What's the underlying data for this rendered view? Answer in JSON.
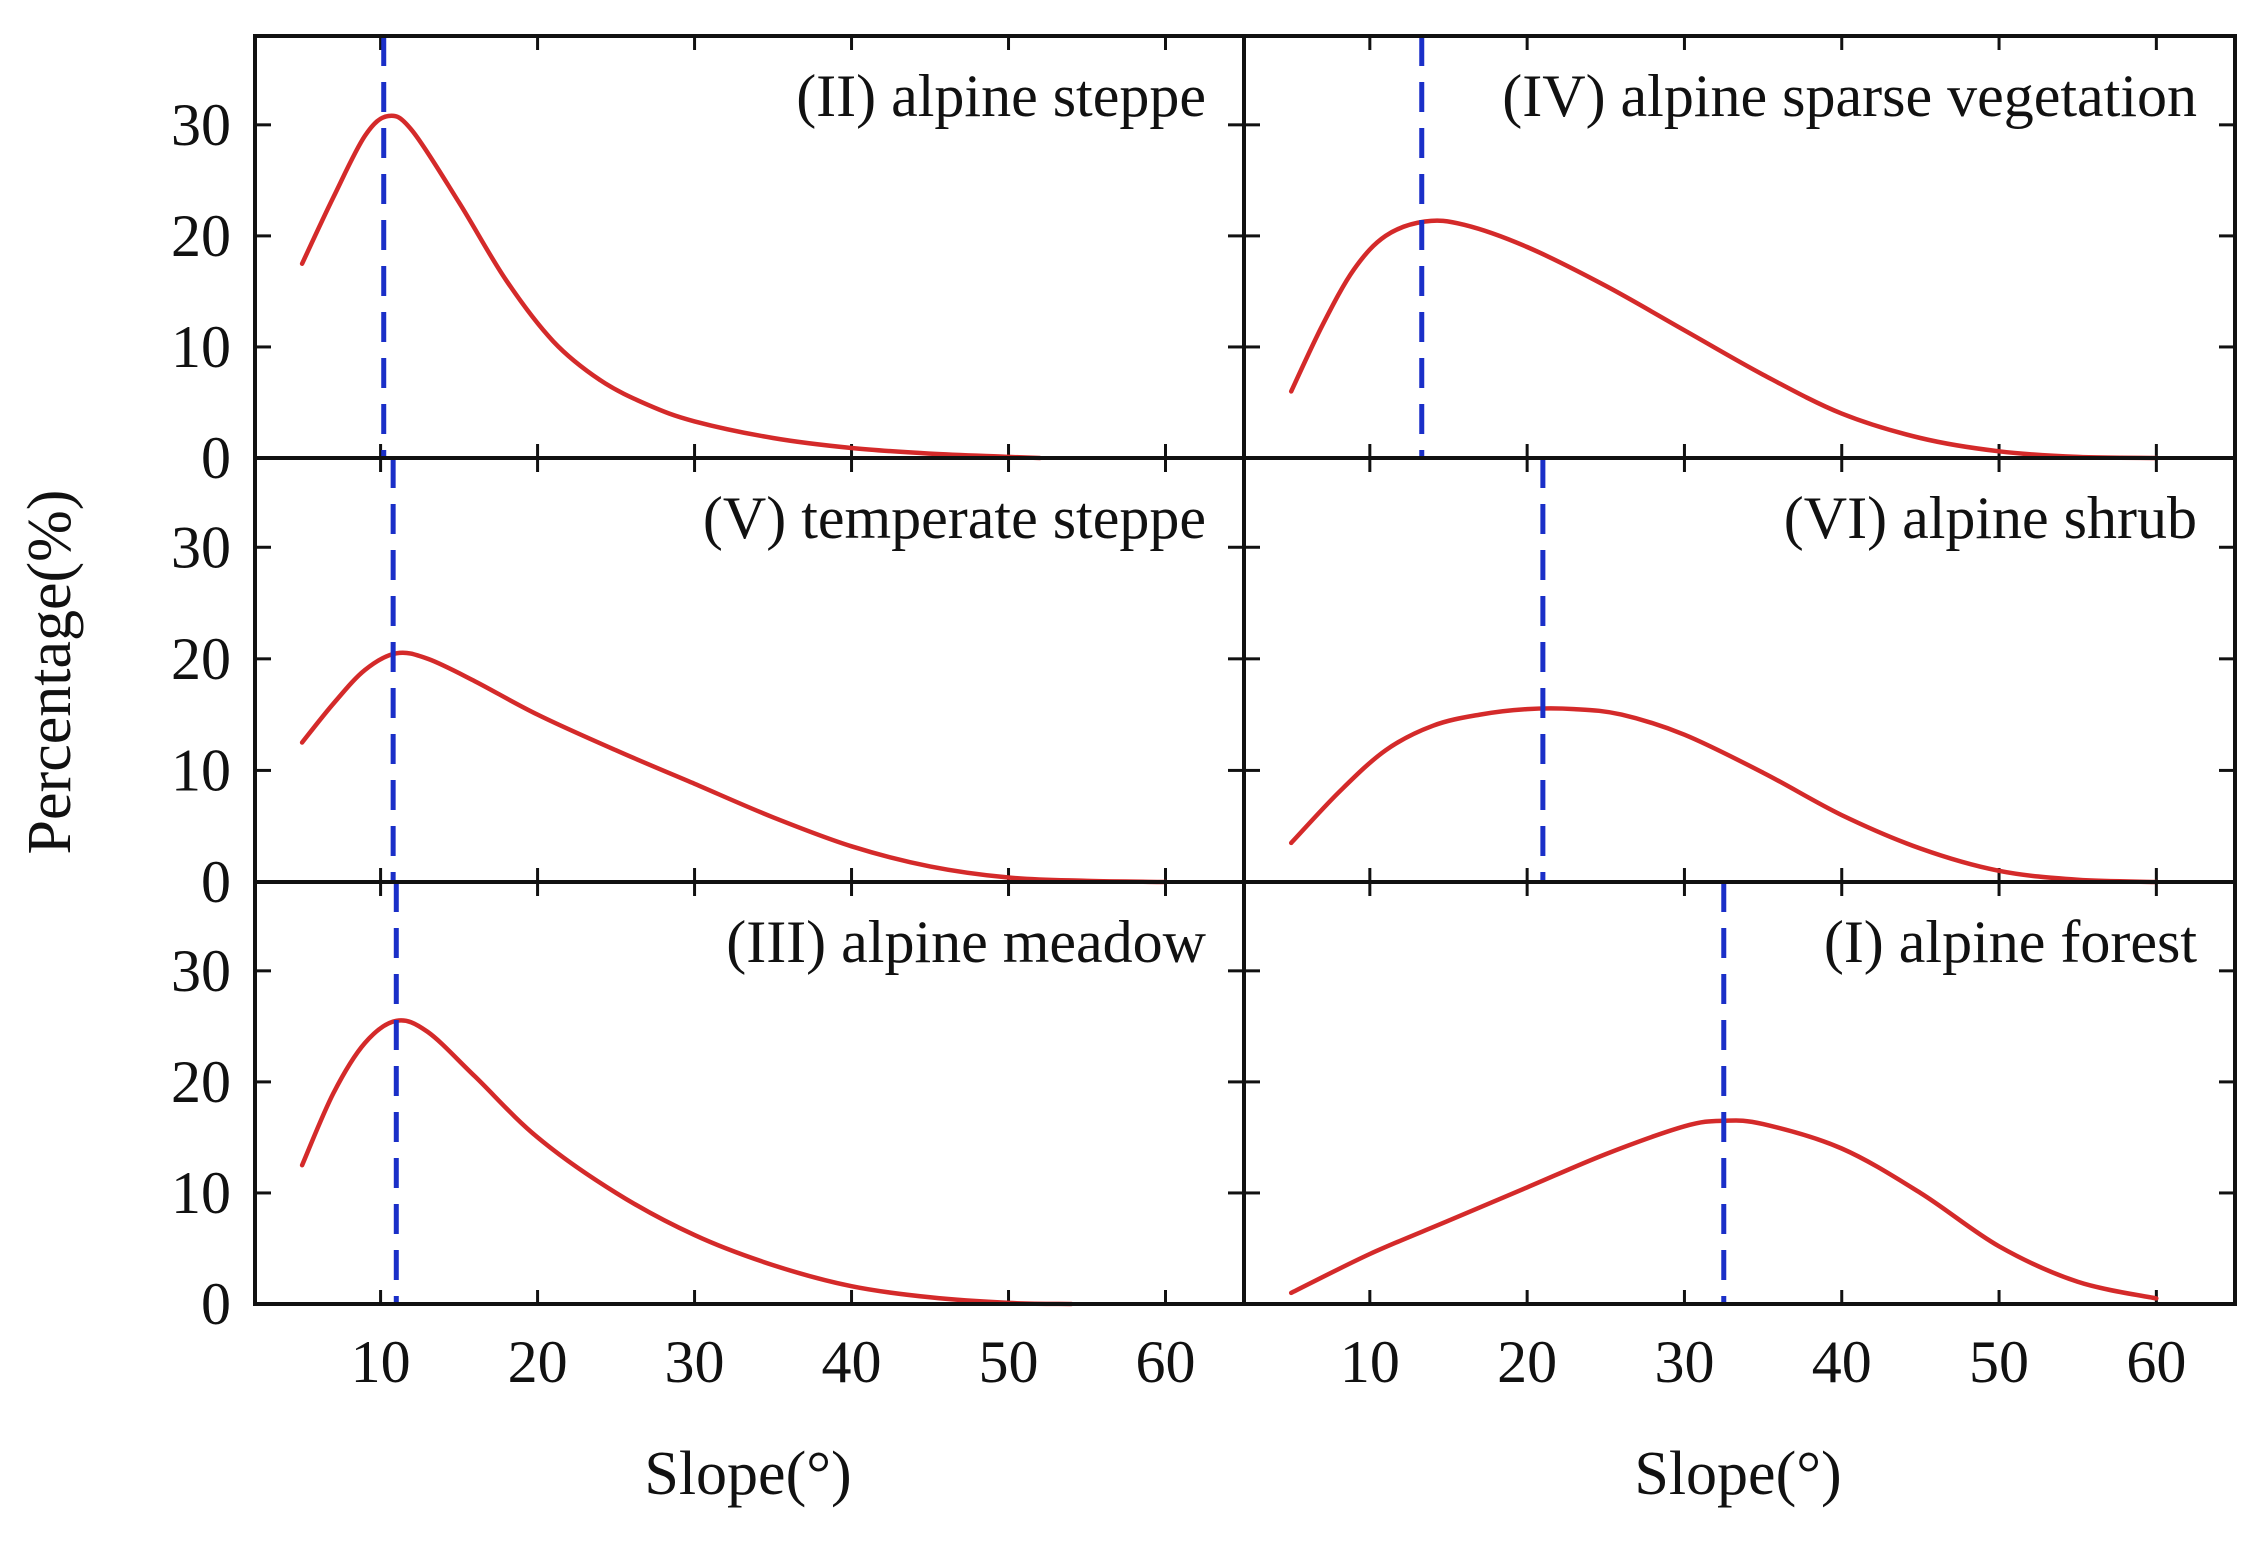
{
  "chart_data": {
    "type": "line",
    "layout": "3 rows x 2 columns, shared axes",
    "xlabel": "Slope(°)",
    "ylabel": "Percentage(%)",
    "xlim": [
      2,
      65
    ],
    "ylim": [
      0,
      38
    ],
    "xticks": [
      10,
      20,
      30,
      40,
      50,
      60
    ],
    "yticks": [
      0,
      10,
      20,
      30
    ],
    "xtick_labels": [
      "10",
      "20",
      "30",
      "40",
      "50",
      "60"
    ],
    "ytick_labels": [
      "0",
      "10",
      "20",
      "30"
    ],
    "curve_color": "#d42a2a",
    "peak_line_color": "#1a2fc8",
    "panels": [
      {
        "label": "(II) alpine steppe",
        "row": 0,
        "col": 0,
        "peak_x": 10.2,
        "x": [
          5,
          7,
          9,
          10.5,
          12,
          15,
          18,
          21,
          24,
          27,
          30,
          35,
          40,
          45,
          50,
          52
        ],
        "y": [
          17.5,
          23.5,
          29,
          30.8,
          29.5,
          23,
          16,
          10.5,
          7,
          4.8,
          3.3,
          1.8,
          0.9,
          0.4,
          0.1,
          0
        ]
      },
      {
        "label": "(IV) alpine sparse vegetation",
        "row": 0,
        "col": 1,
        "peak_x": 13.3,
        "x": [
          5,
          7,
          9,
          11,
          13.5,
          16,
          20,
          25,
          30,
          35,
          40,
          45,
          50,
          55,
          60
        ],
        "y": [
          6,
          12,
          17,
          20,
          21.3,
          21,
          19,
          15.5,
          11.5,
          7.5,
          4,
          1.8,
          0.6,
          0.1,
          0
        ]
      },
      {
        "label": "(V) temperate steppe",
        "row": 1,
        "col": 0,
        "peak_x": 10.8,
        "x": [
          5,
          7,
          9,
          11,
          13,
          16,
          20,
          25,
          30,
          35,
          40,
          45,
          50,
          55,
          60
        ],
        "y": [
          12.5,
          16,
          19,
          20.5,
          20,
          18,
          15,
          11.8,
          8.8,
          5.8,
          3.2,
          1.4,
          0.4,
          0.1,
          0
        ]
      },
      {
        "label": "(VI) alpine shrub",
        "row": 1,
        "col": 1,
        "peak_x": 21,
        "x": [
          5,
          8,
          11,
          14,
          17,
          20,
          23,
          26,
          30,
          35,
          40,
          45,
          50,
          55,
          60
        ],
        "y": [
          3.5,
          8,
          11.8,
          14,
          15,
          15.5,
          15.5,
          15,
          13.2,
          9.8,
          6,
          3,
          1,
          0.2,
          0
        ]
      },
      {
        "label": "(III) alpine meadow",
        "row": 2,
        "col": 0,
        "peak_x": 11,
        "x": [
          5,
          7,
          9,
          11,
          13,
          16,
          20,
          25,
          30,
          35,
          40,
          45,
          50,
          54
        ],
        "y": [
          12.5,
          19,
          23.5,
          25.5,
          24.5,
          20.5,
          15,
          10,
          6.2,
          3.5,
          1.6,
          0.6,
          0.1,
          0
        ]
      },
      {
        "label": "(I) alpine forest",
        "row": 2,
        "col": 1,
        "peak_x": 32.5,
        "x": [
          5,
          10,
          15,
          20,
          25,
          30,
          32.5,
          35,
          40,
          45,
          50,
          55,
          60
        ],
        "y": [
          1,
          4.5,
          7.5,
          10.5,
          13.5,
          16,
          16.5,
          16.2,
          14,
          10,
          5.2,
          2,
          0.5
        ]
      }
    ]
  }
}
